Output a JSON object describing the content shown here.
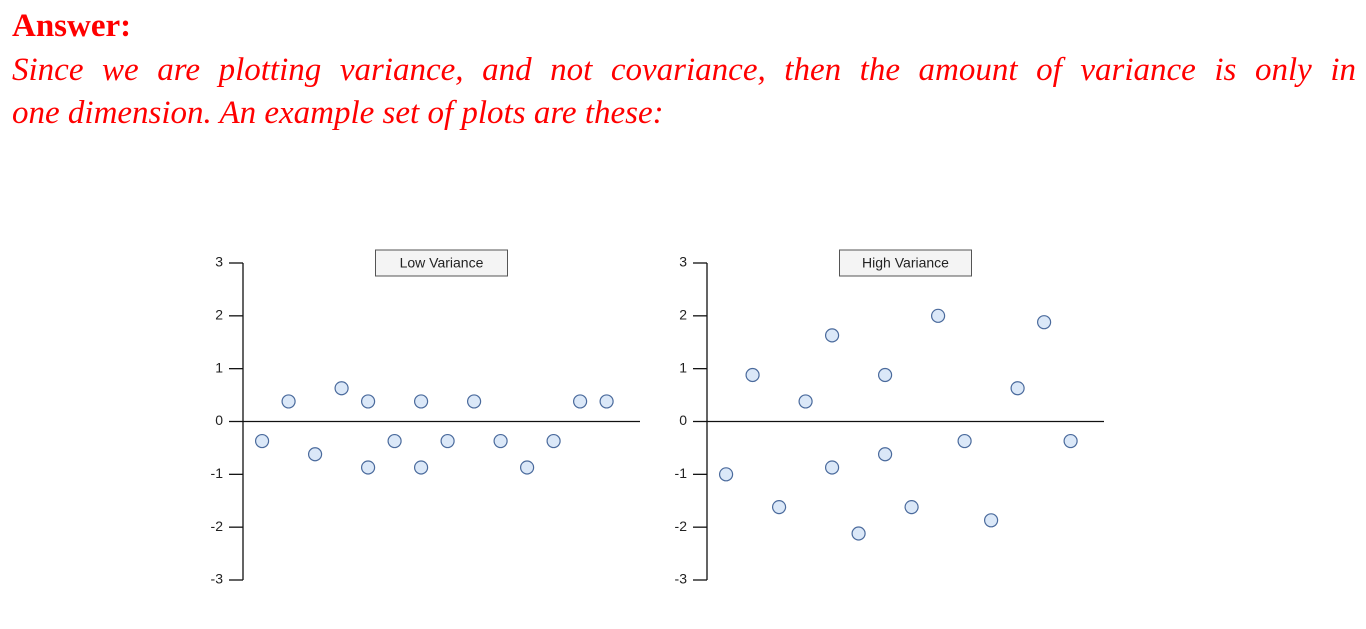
{
  "answer": {
    "label": "Answer:",
    "lines": [
      "Since we are plotting variance, and not covariance, then the amount of variance is only in",
      "one dimension. An example set of plots are these:"
    ]
  },
  "chart_data": [
    {
      "type": "scatter",
      "title": "Low Variance",
      "color": "#dbe8f8",
      "edgecolor": "#4a6a9c",
      "x": [
        1,
        2,
        3,
        4,
        5,
        5,
        6,
        7,
        7,
        8,
        9,
        10,
        11,
        12,
        13,
        14
      ],
      "values": [
        -0.37,
        0.38,
        -0.62,
        0.63,
        0.38,
        -0.87,
        -0.37,
        0.38,
        -0.87,
        -0.37,
        0.38,
        -0.37,
        -0.87,
        -0.37,
        0.38,
        0.38
      ],
      "xlim": [
        0.28,
        15.26
      ],
      "ylim": [
        -3,
        3
      ],
      "yticks": [
        -3,
        -2,
        -1,
        0,
        1,
        2,
        3
      ]
    },
    {
      "type": "scatter",
      "title": "High Variance",
      "color": "#dbe8f8",
      "edgecolor": "#4a6a9c",
      "x": [
        1,
        2,
        3,
        4,
        5,
        5,
        6,
        7,
        7,
        8,
        9,
        10,
        11,
        12,
        13,
        14
      ],
      "values": [
        -1.0,
        0.88,
        -1.62,
        0.38,
        1.63,
        -0.87,
        -2.12,
        0.88,
        -0.62,
        -1.62,
        2.0,
        -0.37,
        -1.87,
        0.63,
        1.88,
        -0.37
      ],
      "xlim": [
        0.28,
        15.26
      ],
      "ylim": [
        -3,
        3
      ],
      "yticks": [
        -3,
        -2,
        -1,
        0,
        1,
        2,
        3
      ]
    }
  ]
}
